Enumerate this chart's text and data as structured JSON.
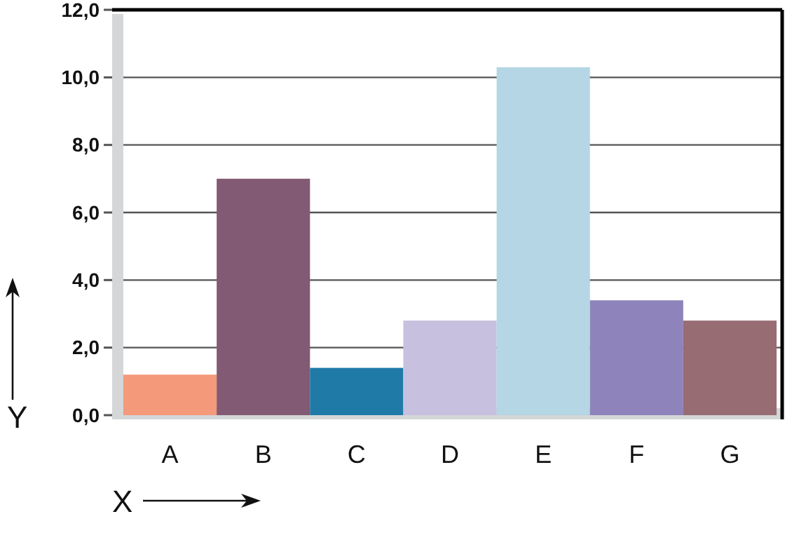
{
  "chart_data": {
    "type": "bar",
    "xlabel": "X",
    "ylabel": "Y",
    "categories": [
      "A",
      "B",
      "C",
      "D",
      "E",
      "F",
      "G"
    ],
    "values": [
      1.2,
      7.0,
      1.4,
      2.8,
      10.3,
      3.4,
      2.8
    ],
    "colors": [
      "#f4997a",
      "#835a74",
      "#1f7aa8",
      "#c7c0df",
      "#b5d6e4",
      "#8e84bb",
      "#976c73"
    ],
    "ylim": [
      0,
      12
    ],
    "yticks": [
      {
        "value": 0,
        "label": "0,0"
      },
      {
        "value": 2,
        "label": "2,0"
      },
      {
        "value": 4,
        "label": "4,0"
      },
      {
        "value": 6,
        "label": "6,0"
      },
      {
        "value": 8,
        "label": "8,0"
      },
      {
        "value": 10,
        "label": "10,0"
      },
      {
        "value": 12,
        "label": "12,0"
      }
    ],
    "grid": "y"
  }
}
